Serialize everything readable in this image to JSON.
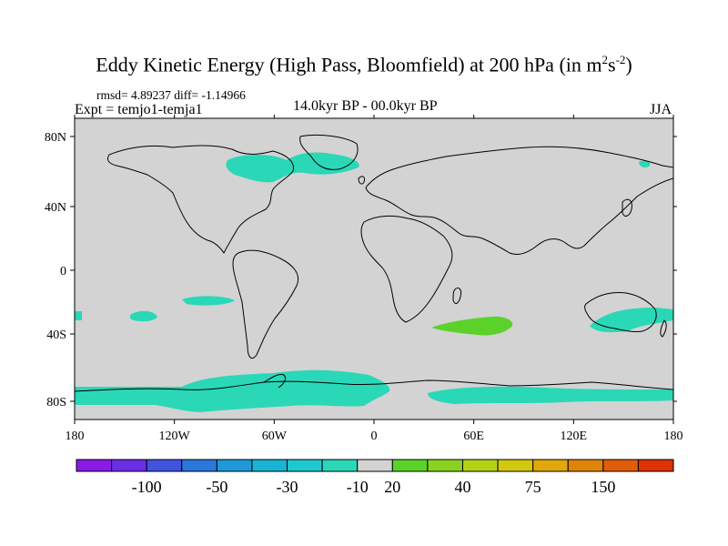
{
  "title_main": "Eddy Kinetic Energy (High Pass, Bloomfield) at 200 hPa (in m",
  "title_sup1": "2",
  "title_mid": "s",
  "title_sup2": "-2",
  "title_end": ")",
  "stats": "rmsd= 4.89237 diff= -1.14966",
  "expt": "Expt = temjo1-temja1",
  "period": "14.0kyr BP - 00.0kyr BP",
  "season": "JJA",
  "map": {
    "land_sea_color": "#d3d3d3",
    "coast_color": "#000000",
    "lon_ticks": [
      "180",
      "120W",
      "60W",
      "0",
      "60E",
      "120E",
      "180"
    ],
    "lat_ticks": [
      "80N",
      "40N",
      "0",
      "40S",
      "80S"
    ]
  },
  "colorbar": {
    "colors": [
      "#8c1ae6",
      "#6a2ee6",
      "#3f52e0",
      "#2a78dc",
      "#1e98d8",
      "#18b4d4",
      "#1ec8cc",
      "#2ad8b8",
      "#d3d3d3",
      "#5ad22a",
      "#8ad21e",
      "#b4d214",
      "#d2c80e",
      "#e0a80a",
      "#e08406",
      "#e05c06",
      "#e03204"
    ],
    "labels": [
      "-100",
      "-50",
      "-30",
      "-10",
      "20",
      "40",
      "75",
      "150"
    ]
  },
  "anomalies": {
    "negative_color": "#2ad8b8",
    "positive_color": "#5ad22a"
  }
}
